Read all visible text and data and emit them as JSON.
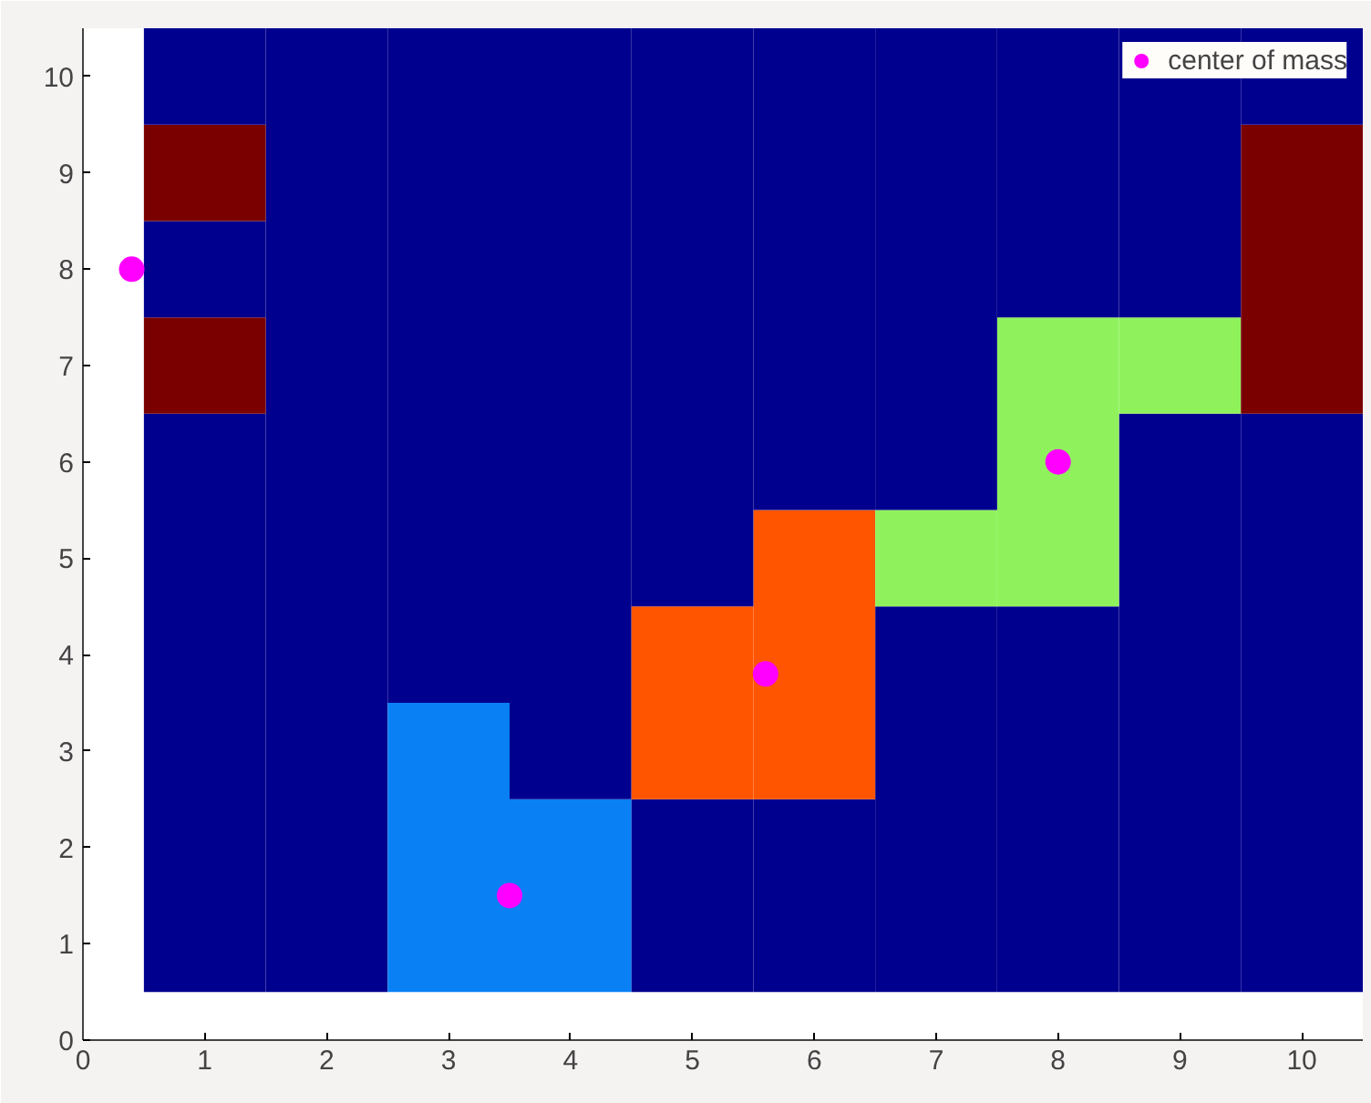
{
  "chart_data": {
    "type": "bar",
    "stacked": true,
    "xlim": [
      0,
      10.5
    ],
    "ylim": [
      0,
      10.5
    ],
    "xticks": [
      0,
      1,
      2,
      3,
      4,
      5,
      6,
      7,
      8,
      9,
      10
    ],
    "yticks": [
      0,
      1,
      2,
      3,
      4,
      5,
      6,
      7,
      8,
      9,
      10
    ],
    "grid": false,
    "legend": "top right",
    "series": [
      {
        "x": [
          1,
          2,
          3,
          4,
          5,
          6,
          7,
          8,
          9,
          10
        ],
        "base": [
          0.5,
          0.5,
          0.5,
          0.5,
          0.5,
          0.5,
          0.5,
          0.5,
          0.5,
          0.5
        ],
        "values": [
          6,
          10,
          3,
          2,
          2,
          2,
          4,
          4,
          6,
          6
        ],
        "colors": [
          "#00008f",
          "#00008f",
          "#0a80f5",
          "#0a80f5",
          "#00008f",
          "#00008f",
          "#00008f",
          "#00008f",
          "#00008f",
          "#00008f"
        ]
      },
      {
        "x": [
          1,
          2,
          3,
          4,
          5,
          6,
          7,
          8,
          9,
          10
        ],
        "values": [
          1,
          null,
          7,
          8,
          2,
          3,
          1,
          3,
          1,
          3
        ],
        "colors": [
          "#7a0000",
          null,
          "#00008f",
          "#00008f",
          "#ff5500",
          "#ff5500",
          "#8ff25c",
          "#8ff25c",
          "#8ff25c",
          "#7a0000"
        ]
      },
      {
        "x": [
          1,
          2,
          3,
          4,
          5,
          6,
          7,
          8,
          9,
          10
        ],
        "values": [
          1,
          null,
          null,
          null,
          6,
          5,
          5,
          3,
          3,
          1
        ],
        "colors": [
          "#00008f",
          null,
          null,
          null,
          "#00008f",
          "#00008f",
          "#00008f",
          "#00008f",
          "#00008f",
          "#00008f"
        ]
      },
      {
        "x": [
          1
        ],
        "values": [
          1
        ],
        "colors": [
          "#7a0000"
        ]
      },
      {
        "x": [
          1
        ],
        "values": [
          1
        ],
        "colors": [
          "#00008f"
        ]
      },
      {
        "type": "scatter",
        "marker": "circle",
        "name": "center of mass",
        "color": "#ff00ff",
        "x": [
          0.4,
          3.5,
          5.6,
          8.0
        ],
        "values": [
          8.0,
          1.5,
          3.8,
          6.0
        ]
      }
    ]
  }
}
